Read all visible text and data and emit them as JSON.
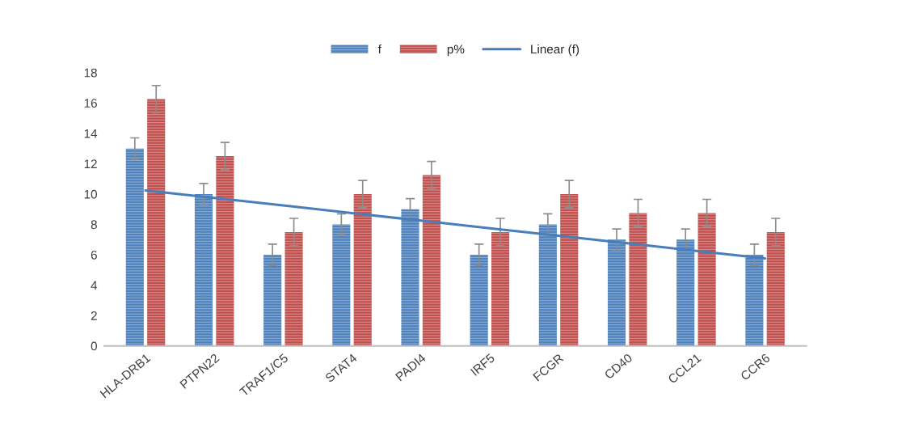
{
  "chart_data": {
    "type": "bar",
    "categories": [
      "HLA-DRB1",
      "PTPN22",
      "TRAF1/C5",
      "STAT4",
      "PADI4",
      "IRF5",
      "FCGR",
      "CD40",
      "CCL21",
      "CCR6"
    ],
    "series": [
      {
        "name": "f",
        "color": "#4f81bd",
        "values": [
          13,
          10,
          6,
          8,
          9,
          6,
          8,
          7,
          7,
          6
        ],
        "errors": [
          0.7,
          0.7,
          0.7,
          0.7,
          0.7,
          0.7,
          0.7,
          0.7,
          0.7,
          0.7
        ]
      },
      {
        "name": "p%",
        "color": "#c0504d",
        "values": [
          16.25,
          12.5,
          7.5,
          10,
          11.25,
          7.5,
          10,
          8.75,
          8.75,
          7.5
        ],
        "errors": [
          0.9,
          0.9,
          0.9,
          0.9,
          0.9,
          0.9,
          0.9,
          0.9,
          0.9,
          0.9
        ]
      },
      {
        "name": "Linear (f)",
        "type": "line",
        "color": "#4a7ebb",
        "values": [
          10.24,
          9.74,
          9.25,
          8.75,
          8.25,
          7.75,
          7.25,
          6.76,
          6.26,
          5.76
        ]
      }
    ],
    "ylim": [
      0,
      18
    ],
    "yticks": [
      0,
      2,
      4,
      6,
      8,
      10,
      12,
      14,
      16,
      18
    ],
    "legend": "top",
    "grid": false
  }
}
